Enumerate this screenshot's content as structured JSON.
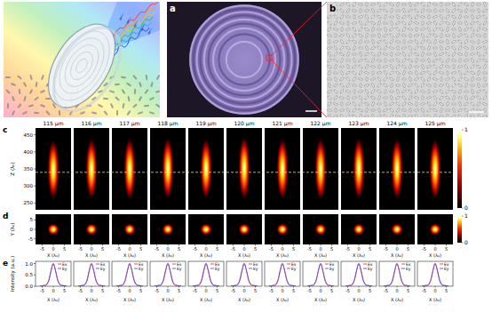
{
  "figure": {
    "panel_a": {
      "label": "a"
    },
    "panel_b": {
      "label": "b"
    }
  },
  "chart_data": [
    {
      "type": "heatmap",
      "label": "c",
      "titles": [
        "115 μm",
        "116 μm",
        "117 μm",
        "118 μm",
        "119 μm",
        "120 μm",
        "121 μm",
        "122 μm",
        "123 μm",
        "124 μm",
        "125 μm"
      ],
      "y_label": "Z (λ₀)",
      "xlim": [
        -8,
        8
      ],
      "ylim": [
        230,
        470
      ],
      "yticks": [
        250,
        300,
        350,
        400,
        450
      ],
      "tick_labels": "y",
      "reference_z": 340,
      "spots": [
        {
          "z": 348,
          "length": 88,
          "width": 2.6
        },
        {
          "z": 350,
          "length": 90,
          "width": 2.6
        },
        {
          "z": 349,
          "length": 92,
          "width": 2.6
        },
        {
          "z": 351,
          "length": 91,
          "width": 2.6
        },
        {
          "z": 350,
          "length": 89,
          "width": 2.6
        },
        {
          "z": 352,
          "length": 93,
          "width": 2.6
        },
        {
          "z": 350,
          "length": 90,
          "width": 2.6
        },
        {
          "z": 349,
          "length": 92,
          "width": 2.6
        },
        {
          "z": 351,
          "length": 91,
          "width": 2.6
        },
        {
          "z": 350,
          "length": 90,
          "width": 2.6
        },
        {
          "z": 349,
          "length": 89,
          "width": 2.6
        }
      ],
      "colorbar": {
        "range": [
          0,
          1
        ],
        "ticks": [
          0,
          1
        ]
      }
    },
    {
      "type": "heatmap",
      "label": "d",
      "x_label": "X (λ₀)",
      "y_label": "Y (λ₀)",
      "xlim": [
        -8,
        8
      ],
      "ylim": [
        -8,
        8
      ],
      "xticks": [
        -5,
        0,
        5
      ],
      "yticks": [
        -5,
        0,
        5
      ],
      "spots": [
        {
          "x": 0,
          "y": 0,
          "width": 2.6
        },
        {
          "x": 0,
          "y": 0,
          "width": 2.6
        },
        {
          "x": 0,
          "y": 0,
          "width": 2.6
        },
        {
          "x": 0,
          "y": 0,
          "width": 2.6
        },
        {
          "x": 0,
          "y": 0,
          "width": 2.6
        },
        {
          "x": 0,
          "y": 0,
          "width": 2.6
        },
        {
          "x": 0,
          "y": 0,
          "width": 2.6
        },
        {
          "x": 0,
          "y": 0,
          "width": 2.6
        },
        {
          "x": 0,
          "y": 0,
          "width": 2.6
        },
        {
          "x": 0,
          "y": 0,
          "width": 2.6
        },
        {
          "x": 0,
          "y": 0,
          "width": 2.6
        }
      ],
      "colorbar": {
        "range": [
          0,
          1
        ],
        "ticks": [
          0,
          1
        ]
      }
    },
    {
      "type": "line",
      "label": "e",
      "x_label": "X (λ₀)",
      "y_label": "Intensity (a.u.)",
      "legend": "upper right",
      "x": [
        -6,
        -5,
        -4,
        -3,
        -2,
        -1,
        0,
        1,
        2,
        3,
        4,
        5,
        6
      ],
      "xlim": [
        -8,
        8
      ],
      "ylim": [
        0,
        1.1
      ],
      "xticks": [
        -5,
        0,
        5
      ],
      "yticks": [
        {
          "value": 0,
          "label": "0.0"
        },
        {
          "value": 0.5,
          "label": "0.5"
        },
        {
          "value": 1,
          "label": "1.0"
        }
      ],
      "panels": [
        {
          "series": [
            {
              "name": "Ex",
              "color": "#e8202a",
              "values": [
                0.01,
                0.02,
                0.03,
                0.06,
                0.25,
                0.68,
                1.0,
                0.68,
                0.25,
                0.06,
                0.03,
                0.02,
                0.01
              ]
            },
            {
              "name": "Ey",
              "color": "#3c3cf0",
              "values": [
                0.01,
                0.02,
                0.04,
                0.08,
                0.28,
                0.7,
                1.0,
                0.7,
                0.28,
                0.08,
                0.04,
                0.02,
                0.01
              ]
            }
          ]
        },
        {
          "series": [
            {
              "name": "Ex",
              "color": "#e8202a",
              "values": [
                0.01,
                0.02,
                0.03,
                0.06,
                0.25,
                0.68,
                1.0,
                0.68,
                0.25,
                0.06,
                0.03,
                0.02,
                0.01
              ]
            },
            {
              "name": "Ey",
              "color": "#3c3cf0",
              "values": [
                0.01,
                0.02,
                0.04,
                0.08,
                0.28,
                0.7,
                1.0,
                0.7,
                0.28,
                0.08,
                0.04,
                0.02,
                0.01
              ]
            }
          ]
        },
        {
          "series": [
            {
              "name": "Ex",
              "color": "#e8202a",
              "values": [
                0.01,
                0.02,
                0.03,
                0.06,
                0.25,
                0.68,
                1.0,
                0.68,
                0.25,
                0.06,
                0.03,
                0.02,
                0.01
              ]
            },
            {
              "name": "Ey",
              "color": "#3c3cf0",
              "values": [
                0.01,
                0.02,
                0.04,
                0.08,
                0.28,
                0.7,
                1.0,
                0.7,
                0.28,
                0.08,
                0.04,
                0.02,
                0.01
              ]
            }
          ]
        },
        {
          "series": [
            {
              "name": "Ex",
              "color": "#e8202a",
              "values": [
                0.01,
                0.02,
                0.03,
                0.06,
                0.25,
                0.68,
                1.0,
                0.68,
                0.25,
                0.06,
                0.03,
                0.02,
                0.01
              ]
            },
            {
              "name": "Ey",
              "color": "#3c3cf0",
              "values": [
                0.01,
                0.02,
                0.04,
                0.08,
                0.28,
                0.7,
                1.0,
                0.7,
                0.28,
                0.08,
                0.04,
                0.02,
                0.01
              ]
            }
          ]
        },
        {
          "series": [
            {
              "name": "Ex",
              "color": "#e8202a",
              "values": [
                0.01,
                0.02,
                0.03,
                0.06,
                0.25,
                0.68,
                1.0,
                0.68,
                0.25,
                0.06,
                0.03,
                0.02,
                0.01
              ]
            },
            {
              "name": "Ey",
              "color": "#3c3cf0",
              "values": [
                0.01,
                0.02,
                0.04,
                0.08,
                0.28,
                0.7,
                1.0,
                0.7,
                0.28,
                0.08,
                0.04,
                0.02,
                0.01
              ]
            }
          ]
        },
        {
          "series": [
            {
              "name": "Ex",
              "color": "#e8202a",
              "values": [
                0.01,
                0.02,
                0.03,
                0.06,
                0.25,
                0.68,
                1.0,
                0.68,
                0.25,
                0.06,
                0.03,
                0.02,
                0.01
              ]
            },
            {
              "name": "Ey",
              "color": "#3c3cf0",
              "values": [
                0.01,
                0.02,
                0.04,
                0.08,
                0.28,
                0.7,
                1.0,
                0.7,
                0.28,
                0.08,
                0.04,
                0.02,
                0.01
              ]
            }
          ]
        },
        {
          "series": [
            {
              "name": "Ex",
              "color": "#e8202a",
              "values": [
                0.01,
                0.02,
                0.03,
                0.06,
                0.25,
                0.68,
                1.0,
                0.68,
                0.25,
                0.06,
                0.03,
                0.02,
                0.01
              ]
            },
            {
              "name": "Ey",
              "color": "#3c3cf0",
              "values": [
                0.01,
                0.02,
                0.04,
                0.08,
                0.28,
                0.7,
                1.0,
                0.7,
                0.28,
                0.08,
                0.04,
                0.02,
                0.01
              ]
            }
          ]
        },
        {
          "series": [
            {
              "name": "Ex",
              "color": "#e8202a",
              "values": [
                0.01,
                0.02,
                0.03,
                0.06,
                0.25,
                0.68,
                1.0,
                0.68,
                0.25,
                0.06,
                0.03,
                0.02,
                0.01
              ]
            },
            {
              "name": "Ey",
              "color": "#3c3cf0",
              "values": [
                0.01,
                0.02,
                0.04,
                0.08,
                0.28,
                0.7,
                1.0,
                0.7,
                0.28,
                0.08,
                0.04,
                0.02,
                0.01
              ]
            }
          ]
        },
        {
          "series": [
            {
              "name": "Ex",
              "color": "#e8202a",
              "values": [
                0.01,
                0.02,
                0.03,
                0.06,
                0.25,
                0.68,
                1.0,
                0.68,
                0.25,
                0.06,
                0.03,
                0.02,
                0.01
              ]
            },
            {
              "name": "Ey",
              "color": "#3c3cf0",
              "values": [
                0.01,
                0.02,
                0.04,
                0.08,
                0.28,
                0.7,
                1.0,
                0.7,
                0.28,
                0.08,
                0.04,
                0.02,
                0.01
              ]
            }
          ]
        },
        {
          "series": [
            {
              "name": "Ex",
              "color": "#e8202a",
              "values": [
                0.01,
                0.02,
                0.03,
                0.06,
                0.25,
                0.68,
                1.0,
                0.68,
                0.25,
                0.06,
                0.03,
                0.02,
                0.01
              ]
            },
            {
              "name": "Ey",
              "color": "#3c3cf0",
              "values": [
                0.01,
                0.02,
                0.04,
                0.08,
                0.28,
                0.7,
                1.0,
                0.7,
                0.28,
                0.08,
                0.04,
                0.02,
                0.01
              ]
            }
          ]
        },
        {
          "series": [
            {
              "name": "Ex",
              "color": "#e8202a",
              "values": [
                0.01,
                0.02,
                0.03,
                0.06,
                0.25,
                0.68,
                1.0,
                0.68,
                0.25,
                0.06,
                0.03,
                0.02,
                0.01
              ]
            },
            {
              "name": "Ey",
              "color": "#3c3cf0",
              "values": [
                0.01,
                0.02,
                0.04,
                0.08,
                0.28,
                0.7,
                1.0,
                0.7,
                0.28,
                0.08,
                0.04,
                0.02,
                0.01
              ]
            }
          ]
        }
      ]
    }
  ]
}
